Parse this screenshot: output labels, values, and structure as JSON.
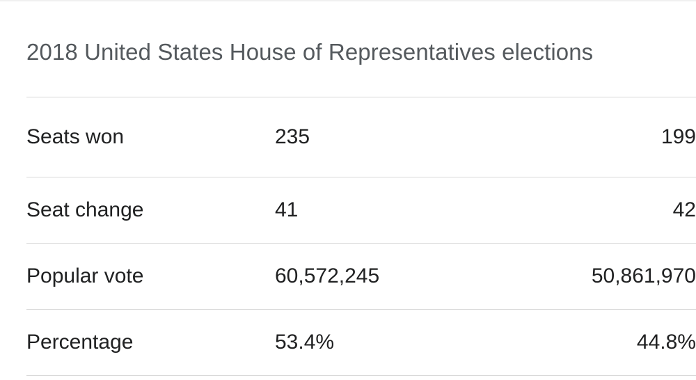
{
  "title": "2018 United States House of Representatives elections",
  "rows": [
    {
      "label": "Seats won",
      "first": "235",
      "second": "199"
    },
    {
      "label": "Seat change",
      "first": "41",
      "second": "42"
    },
    {
      "label": "Popular vote",
      "first": "60,572,245",
      "second": "50,861,970"
    },
    {
      "label": "Percentage",
      "first": "53.4%",
      "second": "44.8%"
    }
  ]
}
